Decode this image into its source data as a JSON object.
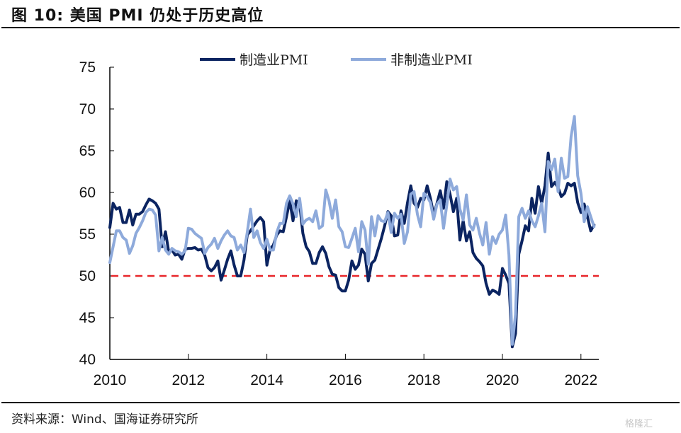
{
  "title": "图 10:  美国 PMI 仍处于历史高位",
  "source": "资料来源：Wind、国海证券研究所",
  "watermark": "格隆汇",
  "colors": {
    "manufacturing": "#0b2461",
    "non_manufacturing": "#8eaadb",
    "threshold": "#e8262a"
  },
  "chart_data": {
    "type": "line",
    "title": "美国 PMI 仍处于历史高位",
    "xlabel": "",
    "ylabel": "",
    "ylim": [
      40,
      75
    ],
    "yticks": [
      40,
      45,
      50,
      55,
      60,
      65,
      70,
      75
    ],
    "xlim": [
      "2010-01",
      "2022-12"
    ],
    "xticks": [
      "2010",
      "2012",
      "2014",
      "2016",
      "2018",
      "2020",
      "2022"
    ],
    "grid": false,
    "legend_position": "top-center",
    "x_start": "2010-01",
    "x_frequency": "monthly",
    "reference_line": {
      "value": 50,
      "style": "dashed"
    },
    "series": [
      {
        "name": "制造业PMI",
        "values": [
          55.8,
          58.7,
          58.0,
          58.2,
          56.4,
          56.4,
          57.9,
          56.1,
          57.4,
          57.4,
          57.7,
          58.5,
          59.2,
          59.0,
          58.7,
          58.0,
          53.5,
          55.3,
          52.9,
          53.1,
          52.5,
          52.6,
          52.0,
          53.2,
          53.3,
          53.3,
          53.4,
          53.1,
          53.2,
          52.5,
          51.0,
          50.6,
          51.0,
          51.8,
          49.5,
          50.7,
          52.0,
          53.0,
          51.3,
          50.0,
          50.0,
          51.9,
          54.9,
          55.4,
          56.0,
          56.6,
          57.0,
          56.5,
          51.3,
          53.2,
          53.7,
          54.9,
          55.4,
          55.3,
          57.1,
          59.0,
          56.6,
          59.0,
          58.7,
          55.1,
          53.5,
          52.9,
          51.5,
          51.5,
          52.8,
          53.5,
          52.7,
          51.1,
          50.2,
          50.1,
          48.6,
          48.2,
          48.2,
          49.5,
          51.8,
          50.8,
          51.3,
          53.2,
          52.6,
          49.4,
          51.5,
          51.9,
          53.2,
          54.5,
          56.0,
          57.7,
          57.2,
          54.8,
          54.9,
          57.8,
          56.3,
          58.8,
          60.8,
          58.7,
          58.2,
          59.3,
          59.1,
          60.8,
          59.3,
          57.3,
          58.7,
          60.2,
          58.1,
          61.3,
          59.8,
          57.7,
          59.3,
          54.3,
          56.6,
          54.2,
          55.3,
          52.8,
          52.1,
          51.7,
          51.2,
          49.1,
          47.8,
          48.3,
          48.1,
          47.8,
          50.9,
          50.1,
          49.1,
          41.5,
          43.1,
          52.6,
          54.2,
          56.0,
          55.4,
          59.3,
          57.5,
          60.7,
          58.7,
          60.8,
          64.7,
          60.7,
          61.2,
          60.6,
          59.5,
          59.9,
          61.1,
          60.8,
          61.1,
          58.8,
          57.6,
          58.6,
          57.1,
          55.4,
          56.1
        ]
      },
      {
        "name": "非制造业PMI",
        "values": [
          51.6,
          53.5,
          55.4,
          55.4,
          54.6,
          54.3,
          52.7,
          53.6,
          55.1,
          55.8,
          56.6,
          57.6,
          58.0,
          57.9,
          57.3,
          53.0,
          54.6,
          53.1,
          52.6,
          53.3,
          53.0,
          52.9,
          52.6,
          53.0,
          55.7,
          55.6,
          55.1,
          54.8,
          54.5,
          52.7,
          53.4,
          53.8,
          54.5,
          53.3,
          54.2,
          54.9,
          55.4,
          54.8,
          54.6,
          53.1,
          53.7,
          52.8,
          55.2,
          58.0,
          54.6,
          55.4,
          54.0,
          53.3,
          54.4,
          53.1,
          53.1,
          55.2,
          56.3,
          56.3,
          58.7,
          59.6,
          58.6,
          57.1,
          59.3,
          56.2,
          56.7,
          56.9,
          56.5,
          57.8,
          55.7,
          56.0,
          60.3,
          59.0,
          56.9,
          59.1,
          55.9,
          55.3,
          53.5,
          53.4,
          54.5,
          55.7,
          52.9,
          56.5,
          55.5,
          51.4,
          57.1,
          54.8,
          57.2,
          56.6,
          56.5,
          57.6,
          55.2,
          57.5,
          56.9,
          57.4,
          53.9,
          55.3,
          59.8,
          60.1,
          57.4,
          55.9,
          59.9,
          59.5,
          58.8,
          56.8,
          58.6,
          59.1,
          55.7,
          58.5,
          61.6,
          60.3,
          60.7,
          58.0,
          56.7,
          59.7,
          56.1,
          55.5,
          56.9,
          55.1,
          53.7,
          56.4,
          52.6,
          54.7,
          53.9,
          55.0,
          55.5,
          57.3,
          52.5,
          41.8,
          45.4,
          57.1,
          58.1,
          56.9,
          57.8,
          56.6,
          55.9,
          57.2,
          58.7,
          55.3,
          63.7,
          62.7,
          64.0,
          60.1,
          64.1,
          61.7,
          61.9,
          66.7,
          69.1,
          62.0,
          59.9,
          56.5,
          58.3,
          57.1,
          55.9
        ]
      }
    ]
  }
}
